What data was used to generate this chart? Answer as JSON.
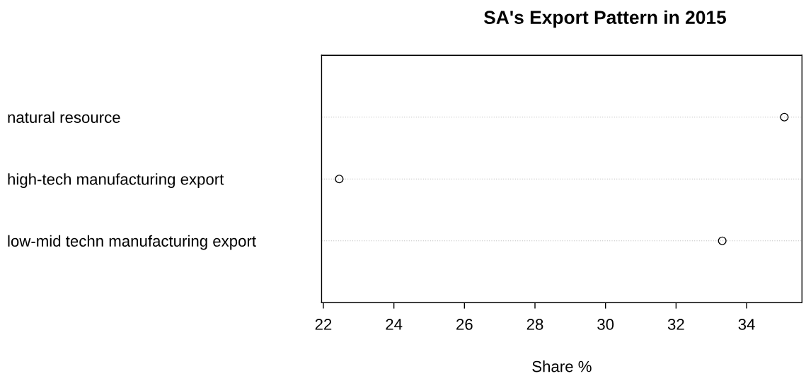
{
  "chart_data": {
    "type": "scatter",
    "title": "SA's Export Pattern in 2015",
    "xlabel": "Share %",
    "orientation": "horizontal",
    "categories": [
      "natural resource",
      "high-tech manufacturing export",
      "low-mid techn manufacturing export"
    ],
    "values": [
      35.07,
      22.45,
      33.31
    ],
    "color": "#000000",
    "marker": "circle",
    "xlim": [
      21.95,
      35.57
    ],
    "xticks": [
      22,
      24,
      26,
      28,
      30,
      32,
      34
    ],
    "grid": "y"
  }
}
